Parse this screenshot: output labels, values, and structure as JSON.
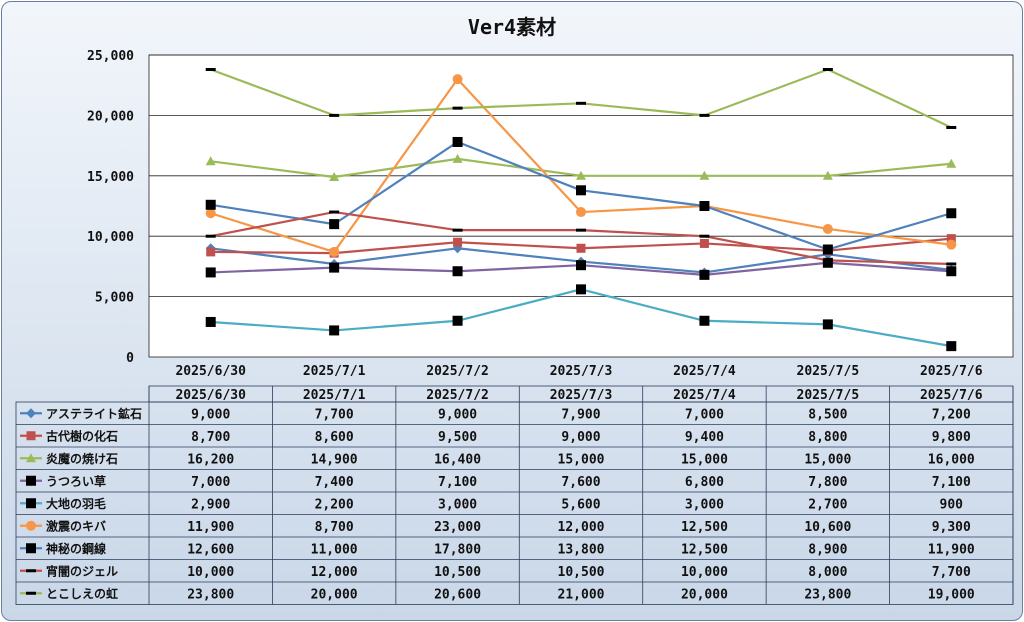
{
  "chart_data": {
    "type": "line",
    "title": "Ver4素材",
    "categories": [
      "2025/6/30",
      "2025/7/1",
      "2025/7/2",
      "2025/7/3",
      "2025/7/4",
      "2025/7/5",
      "2025/7/6"
    ],
    "y_ticks": [
      "0",
      "5,000",
      "10,000",
      "15,000",
      "20,000",
      "25,000"
    ],
    "ylim": [
      0,
      25000
    ],
    "grid": true,
    "legend": "data-table-bottom",
    "series": [
      {
        "name": "アステライト鉱石",
        "marker": "diamond",
        "color": "#4f81bd",
        "values": [
          9000,
          7700,
          9000,
          7900,
          7000,
          8500,
          7200
        ],
        "labels": [
          "9,000",
          "7,700",
          "9,000",
          "7,900",
          "7,000",
          "8,500",
          "7,200"
        ]
      },
      {
        "name": "古代樹の化石",
        "marker": "square",
        "color": "#c0504d",
        "values": [
          8700,
          8600,
          9500,
          9000,
          9400,
          8800,
          9800
        ],
        "labels": [
          "8,700",
          "8,600",
          "9,500",
          "9,000",
          "9,400",
          "8,800",
          "9,800"
        ]
      },
      {
        "name": "炎魔の焼け石",
        "marker": "triangle",
        "color": "#9bbb59",
        "values": [
          16200,
          14900,
          16400,
          15000,
          15000,
          15000,
          16000
        ],
        "labels": [
          "16,200",
          "14,900",
          "16,400",
          "15,000",
          "15,000",
          "15,000",
          "16,000"
        ]
      },
      {
        "name": "うつろい草",
        "marker": "blacksquare",
        "color": "#8064a2",
        "values": [
          7000,
          7400,
          7100,
          7600,
          6800,
          7800,
          7100
        ],
        "labels": [
          "7,000",
          "7,400",
          "7,100",
          "7,600",
          "6,800",
          "7,800",
          "7,100"
        ]
      },
      {
        "name": "大地の羽毛",
        "marker": "blacksquare",
        "color": "#4bacc6",
        "values": [
          2900,
          2200,
          3000,
          5600,
          3000,
          2700,
          900
        ],
        "labels": [
          "2,900",
          "2,200",
          "3,000",
          "5,600",
          "3,000",
          "2,700",
          "900"
        ]
      },
      {
        "name": "激震のキバ",
        "marker": "circle",
        "color": "#f79646",
        "values": [
          11900,
          8700,
          23000,
          12000,
          12500,
          10600,
          9300
        ],
        "labels": [
          "11,900",
          "8,700",
          "23,000",
          "12,000",
          "12,500",
          "10,600",
          "9,300"
        ]
      },
      {
        "name": "神秘の鋼線",
        "marker": "blacksquare",
        "color": "#4f81bd",
        "values": [
          12600,
          11000,
          17800,
          13800,
          12500,
          8900,
          11900
        ],
        "labels": [
          "12,600",
          "11,000",
          "17,800",
          "13,800",
          "12,500",
          "8,900",
          "11,900"
        ]
      },
      {
        "name": "宵闇のジェル",
        "marker": "dash",
        "color": "#c0504d",
        "values": [
          10000,
          12000,
          10500,
          10500,
          10000,
          8000,
          7700
        ],
        "labels": [
          "10,000",
          "12,000",
          "10,500",
          "10,500",
          "10,000",
          "8,000",
          "7,700"
        ]
      },
      {
        "name": "とこしえの虹",
        "marker": "dash",
        "color": "#9bbb59",
        "values": [
          23800,
          20000,
          20600,
          21000,
          20000,
          23800,
          19000
        ],
        "labels": [
          "23,800",
          "20,000",
          "20,600",
          "21,000",
          "20,000",
          "23,800",
          "19,000"
        ]
      }
    ]
  }
}
